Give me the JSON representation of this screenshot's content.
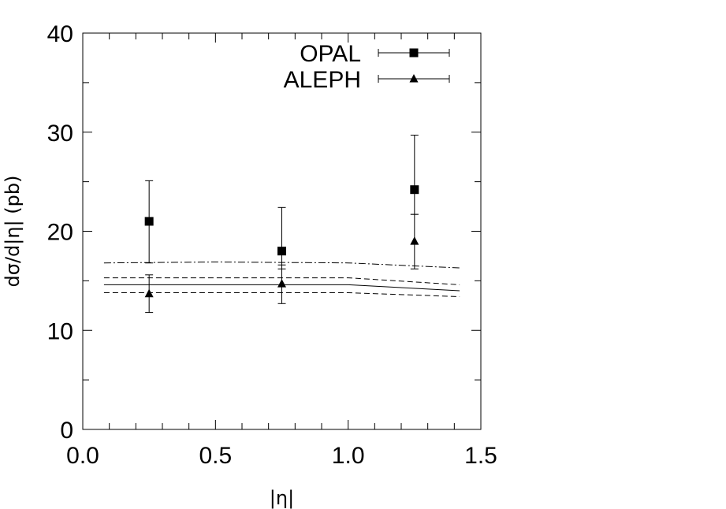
{
  "chart_data": {
    "type": "scatter",
    "xlabel": "|η|",
    "ylabel": "dσ/d|η| (pb)",
    "xlim": [
      0.0,
      1.5
    ],
    "ylim": [
      0,
      40
    ],
    "x_ticks": [
      "0.0",
      "0.5",
      "1.0",
      "1.5"
    ],
    "y_ticks": [
      "0",
      "10",
      "20",
      "30",
      "40"
    ],
    "legend_position": "top-right",
    "series": [
      {
        "name": "OPAL",
        "marker": "square",
        "points": [
          {
            "x": 0.25,
            "y": 21.0,
            "err_low": 4.2,
            "err_high": 4.1
          },
          {
            "x": 0.75,
            "y": 18.0,
            "err_low": 1.8,
            "err_high": 4.4
          },
          {
            "x": 1.25,
            "y": 24.2,
            "err_low": 2.5,
            "err_high": 5.5
          }
        ]
      },
      {
        "name": "ALEPH",
        "marker": "triangle",
        "points": [
          {
            "x": 0.25,
            "y": 13.7,
            "err_low": 1.9,
            "err_high": 1.9
          },
          {
            "x": 0.75,
            "y": 14.7,
            "err_low": 2.0,
            "err_high": 1.9
          },
          {
            "x": 1.25,
            "y": 19.0,
            "err_low": 2.8,
            "err_high": 2.7
          }
        ]
      }
    ],
    "curves": [
      {
        "style": "dash-dot",
        "x": [
          0.08,
          0.5,
          1.0,
          1.42
        ],
        "y": [
          16.8,
          16.9,
          16.8,
          16.3
        ]
      },
      {
        "style": "dashed",
        "x": [
          0.08,
          0.5,
          1.0,
          1.42
        ],
        "y": [
          15.3,
          15.3,
          15.3,
          14.6
        ]
      },
      {
        "style": "solid",
        "x": [
          0.08,
          0.5,
          1.0,
          1.42
        ],
        "y": [
          14.6,
          14.6,
          14.6,
          14.0
        ]
      },
      {
        "style": "dashed",
        "x": [
          0.08,
          0.5,
          1.0,
          1.42
        ],
        "y": [
          13.8,
          13.8,
          13.8,
          13.4
        ]
      }
    ]
  }
}
